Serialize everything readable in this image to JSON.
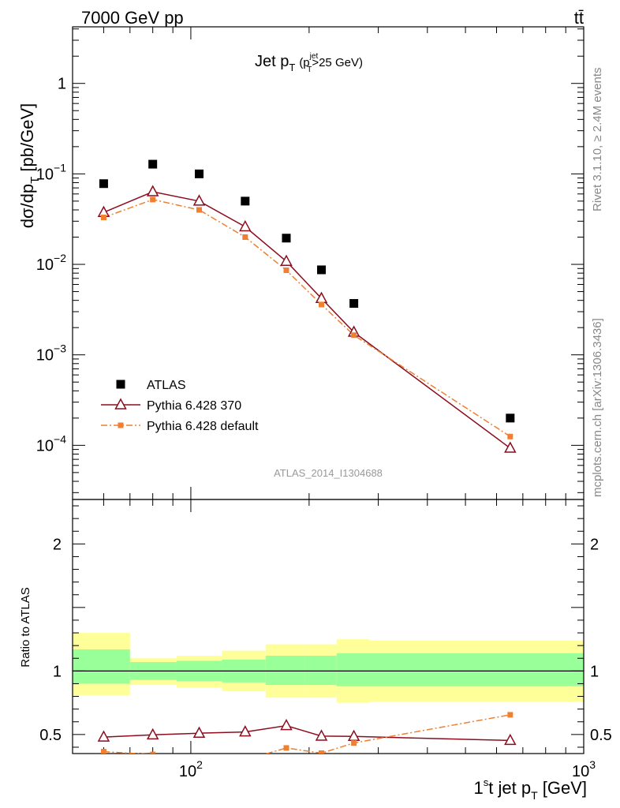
{
  "header": {
    "energy_label": "7000 GeV pp",
    "process_label": "tt̄"
  },
  "side_labels": {
    "rivet": "Rivet 3.1.10, ≥ 2.4M events",
    "mcplots": "mcplots.cern.ch [arXiv:1306.3436]"
  },
  "chart_data": [
    {
      "type": "scatter",
      "title_main": "Jet p",
      "title_main_sub": "T",
      "title_cut_open": "(p",
      "title_cut_sup": "jet",
      "title_cut_sub": "T",
      "title_cut_rest": ">25 GeV)",
      "ylabel": "dσ/dp",
      "ylabel_sub": "T",
      "ylabel_unit": " [pb/GeV]",
      "watermark": "ATLAS_2014_I1304688",
      "x_scale": "log",
      "y_scale": "log",
      "xlim": [
        50,
        1000
      ],
      "ylim": [
        2.52e-05,
        4.22
      ],
      "y_ticks": [
        {
          "value": 1,
          "label": "1"
        },
        {
          "value": 0.1,
          "base": "10",
          "exp": "−1"
        },
        {
          "value": 0.01,
          "base": "10",
          "exp": "−2"
        },
        {
          "value": 0.001,
          "base": "10",
          "exp": "−3"
        },
        {
          "value": 0.0001,
          "base": "10",
          "exp": "−4"
        }
      ],
      "legend_position": "bottom-left",
      "series": [
        {
          "name": "ATLAS",
          "marker": "square",
          "color": "#000000",
          "x": [
            60,
            80,
            105,
            137.5,
            175,
            215,
            260,
            650
          ],
          "y": [
            0.078,
            0.128,
            0.1,
            0.05,
            0.0195,
            0.0087,
            0.0037,
            0.0002
          ]
        },
        {
          "name": "Pythia 6.428 370",
          "marker": "open-triangle",
          "line": "solid",
          "color": "#8b0d1e",
          "x": [
            60,
            80,
            105,
            137.5,
            175,
            215,
            260,
            650
          ],
          "y": [
            0.0375,
            0.0635,
            0.05,
            0.026,
            0.0108,
            0.0042,
            0.00178,
            9.3e-05
          ]
        },
        {
          "name": "Pythia 6.428 default",
          "marker": "square-small",
          "line": "dash-dot",
          "color": "#f07f2f",
          "x": [
            60,
            80,
            105,
            137.5,
            175,
            215,
            260,
            650
          ],
          "y": [
            0.033,
            0.052,
            0.04,
            0.02,
            0.0086,
            0.0036,
            0.00165,
            0.000125
          ]
        }
      ]
    },
    {
      "type": "line",
      "ylabel": "Ratio to ATLAS",
      "xlabel_main": "1",
      "xlabel_sup": "s",
      "xlabel_mid": "t jet p",
      "xlabel_sub": "T",
      "xlabel_unit": " [GeV]",
      "x_scale": "log",
      "xlim": [
        50,
        1000
      ],
      "ylim": [
        0.35,
        2.35
      ],
      "y_ticks": [
        0.5,
        1,
        2
      ],
      "y_tick_labels": [
        "0.5",
        "1",
        "2"
      ],
      "x_ticks": [
        {
          "value": 100,
          "base": "10",
          "exp": "2"
        },
        {
          "value": 1000,
          "base": "10",
          "exp": "3"
        }
      ],
      "bins": [
        {
          "lo": 50,
          "hi": 70,
          "yellow": [
            0.81,
            1.3
          ],
          "green": [
            0.9,
            1.17
          ]
        },
        {
          "lo": 70,
          "hi": 92,
          "yellow": [
            0.89,
            1.1
          ],
          "green": [
            0.93,
            1.07
          ]
        },
        {
          "lo": 92,
          "hi": 120,
          "yellow": [
            0.87,
            1.12
          ],
          "green": [
            0.92,
            1.08
          ]
        },
        {
          "lo": 120,
          "hi": 155,
          "yellow": [
            0.84,
            1.16
          ],
          "green": [
            0.91,
            1.09
          ]
        },
        {
          "lo": 155,
          "hi": 195,
          "yellow": [
            0.79,
            1.21
          ],
          "green": [
            0.89,
            1.12
          ]
        },
        {
          "lo": 195,
          "hi": 235,
          "yellow": [
            0.79,
            1.21
          ],
          "green": [
            0.89,
            1.12
          ]
        },
        {
          "lo": 235,
          "hi": 285,
          "yellow": [
            0.75,
            1.25
          ],
          "green": [
            0.88,
            1.14
          ]
        },
        {
          "lo": 285,
          "hi": 1000,
          "yellow": [
            0.76,
            1.24
          ],
          "green": [
            0.88,
            1.14
          ]
        }
      ],
      "series": [
        {
          "name": "Pythia 6.428 370",
          "marker": "open-triangle",
          "line": "solid",
          "color": "#8b0d1e",
          "x": [
            60,
            80,
            105,
            137.5,
            175,
            215,
            260,
            650
          ],
          "y": [
            0.48,
            0.497,
            0.51,
            0.52,
            0.57,
            0.487,
            0.485,
            0.453
          ]
        },
        {
          "name": "Pythia 6.428 default",
          "marker": "square-small",
          "line": "dash-dot",
          "color": "#f07f2f",
          "x": [
            60,
            80,
            105,
            137.5,
            175,
            215,
            260,
            650
          ],
          "y": [
            0.365,
            0.343,
            0.303,
            0.3,
            0.394,
            0.353,
            0.433,
            0.655
          ]
        }
      ]
    }
  ]
}
